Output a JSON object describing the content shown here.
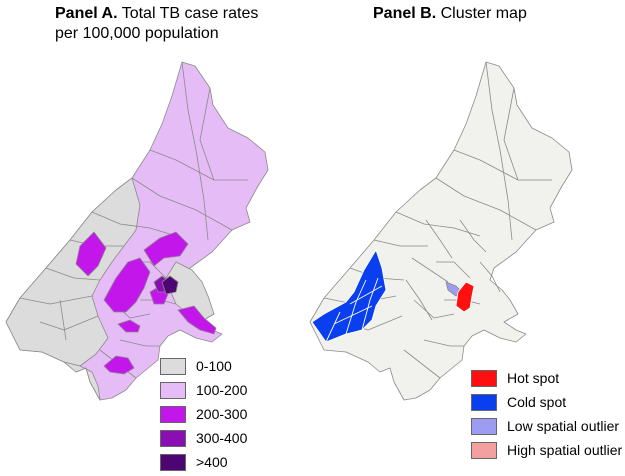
{
  "panel_a": {
    "title_bold": "Panel A.",
    "title_rest": "Total TB case rates",
    "title_line2": "per 100,000 population",
    "legend": [
      {
        "label": "0-100",
        "color": "#dcdcdc"
      },
      {
        "label": "100-200",
        "color": "#e6bcf6"
      },
      {
        "label": "200-300",
        "color": "#c316ea"
      },
      {
        "label": "300-400",
        "color": "#8a0fb3"
      },
      {
        "label": ">400",
        "color": "#4d0574"
      }
    ]
  },
  "panel_b": {
    "title_bold": "Panel B.",
    "title_rest": "Cluster map",
    "legend": [
      {
        "label": "Hot spot",
        "color": "#ff1010"
      },
      {
        "label": "Cold spot",
        "color": "#0a3ff0"
      },
      {
        "label": "Low spatial outlier",
        "color": "#9c9cf2"
      },
      {
        "label": "High spatial outlier",
        "color": "#f4a0a0"
      }
    ]
  },
  "colors": {
    "base_a": "#e6bcf6",
    "base_b": "#f1f1ee",
    "border": "#8a8a8a"
  }
}
